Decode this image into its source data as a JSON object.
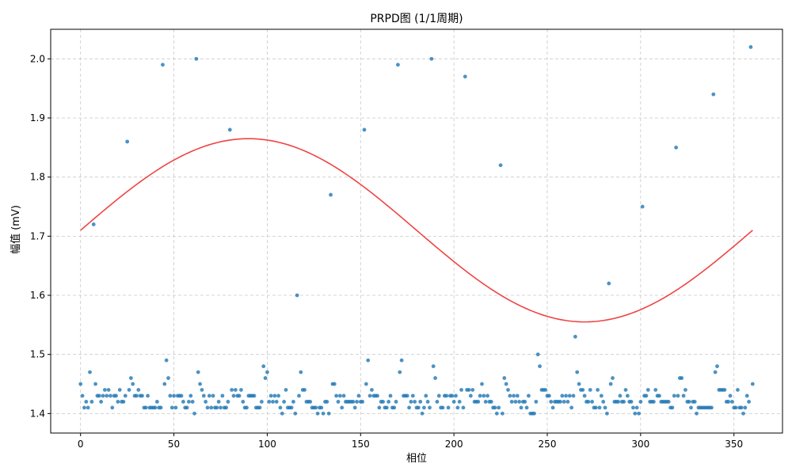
{
  "chart_data": {
    "type": "scatter",
    "title": "PRPD图 (1/1周期)",
    "xlabel": "相位",
    "ylabel": "幅值 (mV)",
    "xlim": [
      -16,
      376
    ],
    "ylim": [
      1.367,
      2.05
    ],
    "xticks": [
      0,
      50,
      100,
      150,
      200,
      250,
      300,
      350
    ],
    "yticks": [
      1.4,
      1.5,
      1.6,
      1.7,
      1.8,
      1.9,
      2.0
    ],
    "xtick_labels": [
      "0",
      "50",
      "100",
      "150",
      "200",
      "250",
      "300",
      "350"
    ],
    "ytick_labels": [
      "1.4",
      "1.5",
      "1.6",
      "1.7",
      "1.8",
      "1.9",
      "2.0"
    ],
    "grid": true,
    "legend": "none",
    "colors": {
      "points": "#1f77b4",
      "sine": "#ef4444",
      "grid": "#c8c8c8"
    },
    "sine_reference": {
      "phase": [
        0,
        30,
        60,
        90,
        120,
        150,
        180,
        210,
        240,
        270,
        300,
        330,
        360
      ],
      "amplitude": [
        1.71,
        1.788,
        1.845,
        1.865,
        1.845,
        1.788,
        1.71,
        1.633,
        1.575,
        1.555,
        1.575,
        1.633,
        1.71
      ]
    },
    "points": {
      "phase": [
        0,
        1,
        2,
        3,
        4,
        5,
        6,
        7,
        8,
        9,
        10,
        11,
        12,
        13,
        14,
        15,
        16,
        17,
        18,
        19,
        20,
        21,
        22,
        23,
        24,
        25,
        26,
        27,
        28,
        29,
        30,
        31,
        32,
        33,
        34,
        35,
        36,
        37,
        38,
        39,
        40,
        41,
        42,
        43,
        44,
        45,
        46,
        47,
        48,
        49,
        50,
        51,
        52,
        53,
        54,
        55,
        56,
        57,
        58,
        59,
        60,
        61,
        62,
        63,
        64,
        65,
        66,
        67,
        68,
        69,
        70,
        71,
        72,
        73,
        74,
        75,
        76,
        77,
        78,
        79,
        80,
        81,
        82,
        83,
        84,
        85,
        86,
        87,
        88,
        89,
        90,
        91,
        92,
        93,
        94,
        95,
        96,
        97,
        98,
        99,
        100,
        101,
        102,
        103,
        104,
        105,
        106,
        107,
        108,
        109,
        110,
        111,
        112,
        113,
        114,
        115,
        116,
        117,
        118,
        119,
        120,
        121,
        122,
        123,
        124,
        125,
        126,
        127,
        128,
        129,
        130,
        131,
        132,
        133,
        134,
        135,
        136,
        137,
        138,
        139,
        140,
        141,
        142,
        143,
        144,
        145,
        146,
        147,
        148,
        149,
        150,
        151,
        152,
        153,
        154,
        155,
        156,
        157,
        158,
        159,
        160,
        161,
        162,
        163,
        164,
        165,
        166,
        167,
        168,
        169,
        170,
        171,
        172,
        173,
        174,
        175,
        176,
        177,
        178,
        179,
        180,
        181,
        182,
        183,
        184,
        185,
        186,
        187,
        188,
        189,
        190,
        191,
        192,
        193,
        194,
        195,
        196,
        197,
        198,
        199,
        200,
        201,
        202,
        203,
        204,
        205,
        206,
        207,
        208,
        209,
        210,
        211,
        212,
        213,
        214,
        215,
        216,
        217,
        218,
        219,
        220,
        221,
        222,
        223,
        224,
        225,
        226,
        227,
        228,
        229,
        230,
        231,
        232,
        233,
        234,
        235,
        236,
        237,
        238,
        239,
        240,
        241,
        242,
        243,
        244,
        245,
        246,
        247,
        248,
        249,
        250,
        251,
        252,
        253,
        254,
        255,
        256,
        257,
        258,
        259,
        260,
        261,
        262,
        263,
        264,
        265,
        266,
        267,
        268,
        269,
        270,
        271,
        272,
        273,
        274,
        275,
        276,
        277,
        278,
        279,
        280,
        281,
        282,
        283,
        284,
        285,
        286,
        287,
        288,
        289,
        290,
        291,
        292,
        293,
        294,
        295,
        296,
        297,
        298,
        299,
        300,
        301,
        302,
        303,
        304,
        305,
        306,
        307,
        308,
        309,
        310,
        311,
        312,
        313,
        314,
        315,
        316,
        317,
        318,
        319,
        320,
        321,
        322,
        323,
        324,
        325,
        326,
        327,
        328,
        329,
        330,
        331,
        332,
        333,
        334,
        335,
        336,
        337,
        338,
        339,
        340,
        341,
        342,
        343,
        344,
        345,
        346,
        347,
        348,
        349,
        350,
        351,
        352,
        353,
        354,
        355,
        356,
        357,
        358,
        359,
        360
      ],
      "amplitude": [
        1.45,
        1.43,
        1.41,
        1.42,
        1.41,
        1.47,
        1.42,
        1.72,
        1.45,
        1.43,
        1.43,
        1.42,
        1.43,
        1.44,
        1.43,
        1.44,
        1.43,
        1.41,
        1.43,
        1.43,
        1.42,
        1.44,
        1.42,
        1.42,
        1.43,
        1.86,
        1.44,
        1.46,
        1.45,
        1.43,
        1.43,
        1.44,
        1.43,
        1.43,
        1.41,
        1.41,
        1.43,
        1.41,
        1.41,
        1.41,
        1.41,
        1.42,
        1.41,
        1.41,
        1.99,
        1.45,
        1.49,
        1.46,
        1.43,
        1.41,
        1.43,
        1.41,
        1.43,
        1.43,
        1.43,
        1.42,
        1.41,
        1.41,
        1.42,
        1.43,
        1.42,
        1.4,
        2.0,
        1.47,
        1.45,
        1.44,
        1.43,
        1.42,
        1.41,
        1.43,
        1.41,
        1.43,
        1.41,
        1.41,
        1.42,
        1.41,
        1.43,
        1.41,
        1.41,
        1.42,
        1.88,
        1.44,
        1.43,
        1.44,
        1.43,
        1.43,
        1.44,
        1.42,
        1.41,
        1.41,
        1.43,
        1.43,
        1.43,
        1.43,
        1.41,
        1.41,
        1.41,
        1.42,
        1.48,
        1.46,
        1.47,
        1.42,
        1.43,
        1.42,
        1.43,
        1.42,
        1.43,
        1.41,
        1.4,
        1.42,
        1.44,
        1.41,
        1.41,
        1.41,
        1.42,
        1.4,
        1.6,
        1.43,
        1.47,
        1.44,
        1.44,
        1.42,
        1.42,
        1.42,
        1.41,
        1.41,
        1.41,
        1.4,
        1.41,
        1.41,
        1.4,
        1.42,
        1.42,
        1.4,
        1.77,
        1.45,
        1.45,
        1.43,
        1.42,
        1.43,
        1.41,
        1.43,
        1.42,
        1.42,
        1.42,
        1.42,
        1.42,
        1.41,
        1.42,
        1.43,
        1.42,
        1.42,
        1.88,
        1.45,
        1.49,
        1.43,
        1.44,
        1.43,
        1.43,
        1.43,
        1.41,
        1.42,
        1.42,
        1.41,
        1.41,
        1.42,
        1.43,
        1.41,
        1.41,
        1.42,
        1.99,
        1.47,
        1.49,
        1.43,
        1.43,
        1.43,
        1.41,
        1.42,
        1.43,
        1.42,
        1.41,
        1.41,
        1.42,
        1.4,
        1.41,
        1.43,
        1.42,
        1.41,
        2.0,
        1.48,
        1.46,
        1.42,
        1.43,
        1.41,
        1.41,
        1.43,
        1.43,
        1.41,
        1.43,
        1.43,
        1.42,
        1.43,
        1.41,
        1.42,
        1.44,
        1.41,
        1.97,
        1.44,
        1.44,
        1.43,
        1.44,
        1.42,
        1.42,
        1.42,
        1.43,
        1.45,
        1.43,
        1.42,
        1.43,
        1.42,
        1.42,
        1.41,
        1.41,
        1.4,
        1.41,
        1.82,
        1.4,
        1.46,
        1.45,
        1.44,
        1.43,
        1.42,
        1.43,
        1.42,
        1.43,
        1.42,
        1.41,
        1.42,
        1.42,
        1.41,
        1.43,
        1.4,
        1.4,
        1.4,
        1.42,
        1.5,
        1.48,
        1.44,
        1.44,
        1.44,
        1.43,
        1.43,
        1.42,
        1.41,
        1.42,
        1.42,
        1.42,
        1.42,
        1.43,
        1.42,
        1.43,
        1.42,
        1.43,
        1.41,
        1.43,
        1.53,
        1.47,
        1.45,
        1.44,
        1.44,
        1.43,
        1.42,
        1.42,
        1.44,
        1.42,
        1.41,
        1.41,
        1.44,
        1.41,
        1.43,
        1.42,
        1.41,
        1.4,
        1.62,
        1.45,
        1.46,
        1.42,
        1.42,
        1.42,
        1.43,
        1.42,
        1.42,
        1.44,
        1.43,
        1.42,
        1.42,
        1.41,
        1.4,
        1.41,
        1.4,
        1.42,
        1.75,
        1.43,
        1.43,
        1.44,
        1.42,
        1.42,
        1.42,
        1.44,
        1.43,
        1.43,
        1.42,
        1.42,
        1.42,
        1.42,
        1.42,
        1.41,
        1.41,
        1.43,
        1.85,
        1.43,
        1.46,
        1.46,
        1.43,
        1.44,
        1.42,
        1.42,
        1.41,
        1.42,
        1.42,
        1.4,
        1.41,
        1.41,
        1.41,
        1.41,
        1.41,
        1.41,
        1.41,
        1.41,
        1.94,
        1.47,
        1.48,
        1.44,
        1.44,
        1.44,
        1.44,
        1.42,
        1.42,
        1.43,
        1.42,
        1.41,
        1.41,
        1.44,
        1.41,
        1.41,
        1.4,
        1.41,
        1.43,
        1.42,
        2.02,
        1.45,
        1.47,
        1.42,
        1.44,
        1.42,
        1.43,
        1.43,
        1.42,
        1.42
      ]
    }
  }
}
